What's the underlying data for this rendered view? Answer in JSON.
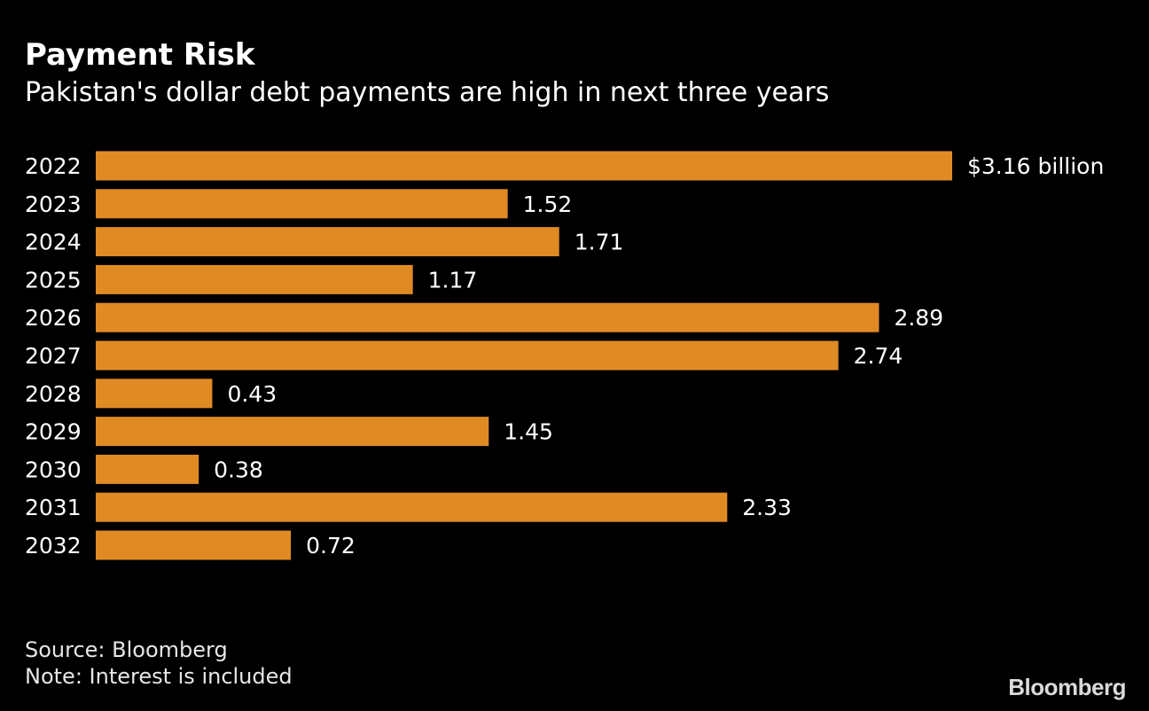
{
  "header": {
    "title": "Payment Risk",
    "subtitle": "Pakistan's dollar debt payments are high in next three years"
  },
  "chart_data": {
    "type": "bar",
    "orientation": "horizontal",
    "title": "Payment Risk",
    "subtitle": "Pakistan's dollar debt payments are high in next three years",
    "categories": [
      "2022",
      "2023",
      "2024",
      "2025",
      "2026",
      "2027",
      "2028",
      "2029",
      "2030",
      "2031",
      "2032"
    ],
    "values": [
      3.16,
      1.52,
      1.71,
      1.17,
      2.89,
      2.74,
      0.43,
      1.45,
      0.38,
      2.33,
      0.72
    ],
    "value_labels": [
      "$3.16 billion",
      "1.52",
      "1.71",
      "1.17",
      "2.89",
      "2.74",
      "0.43",
      "1.45",
      "0.38",
      "2.33",
      "0.72"
    ],
    "xlabel": "",
    "ylabel": "",
    "xlim": [
      0,
      3.16
    ],
    "bar_color": "#E08A24",
    "grid": false,
    "legend": "none"
  },
  "footer": {
    "source": "Source: Bloomberg",
    "note": "Note: Interest is included",
    "logo": "Bloomberg"
  },
  "colors": {
    "background": "#000000",
    "text": "#ffffff",
    "bar": "#E08A24"
  }
}
